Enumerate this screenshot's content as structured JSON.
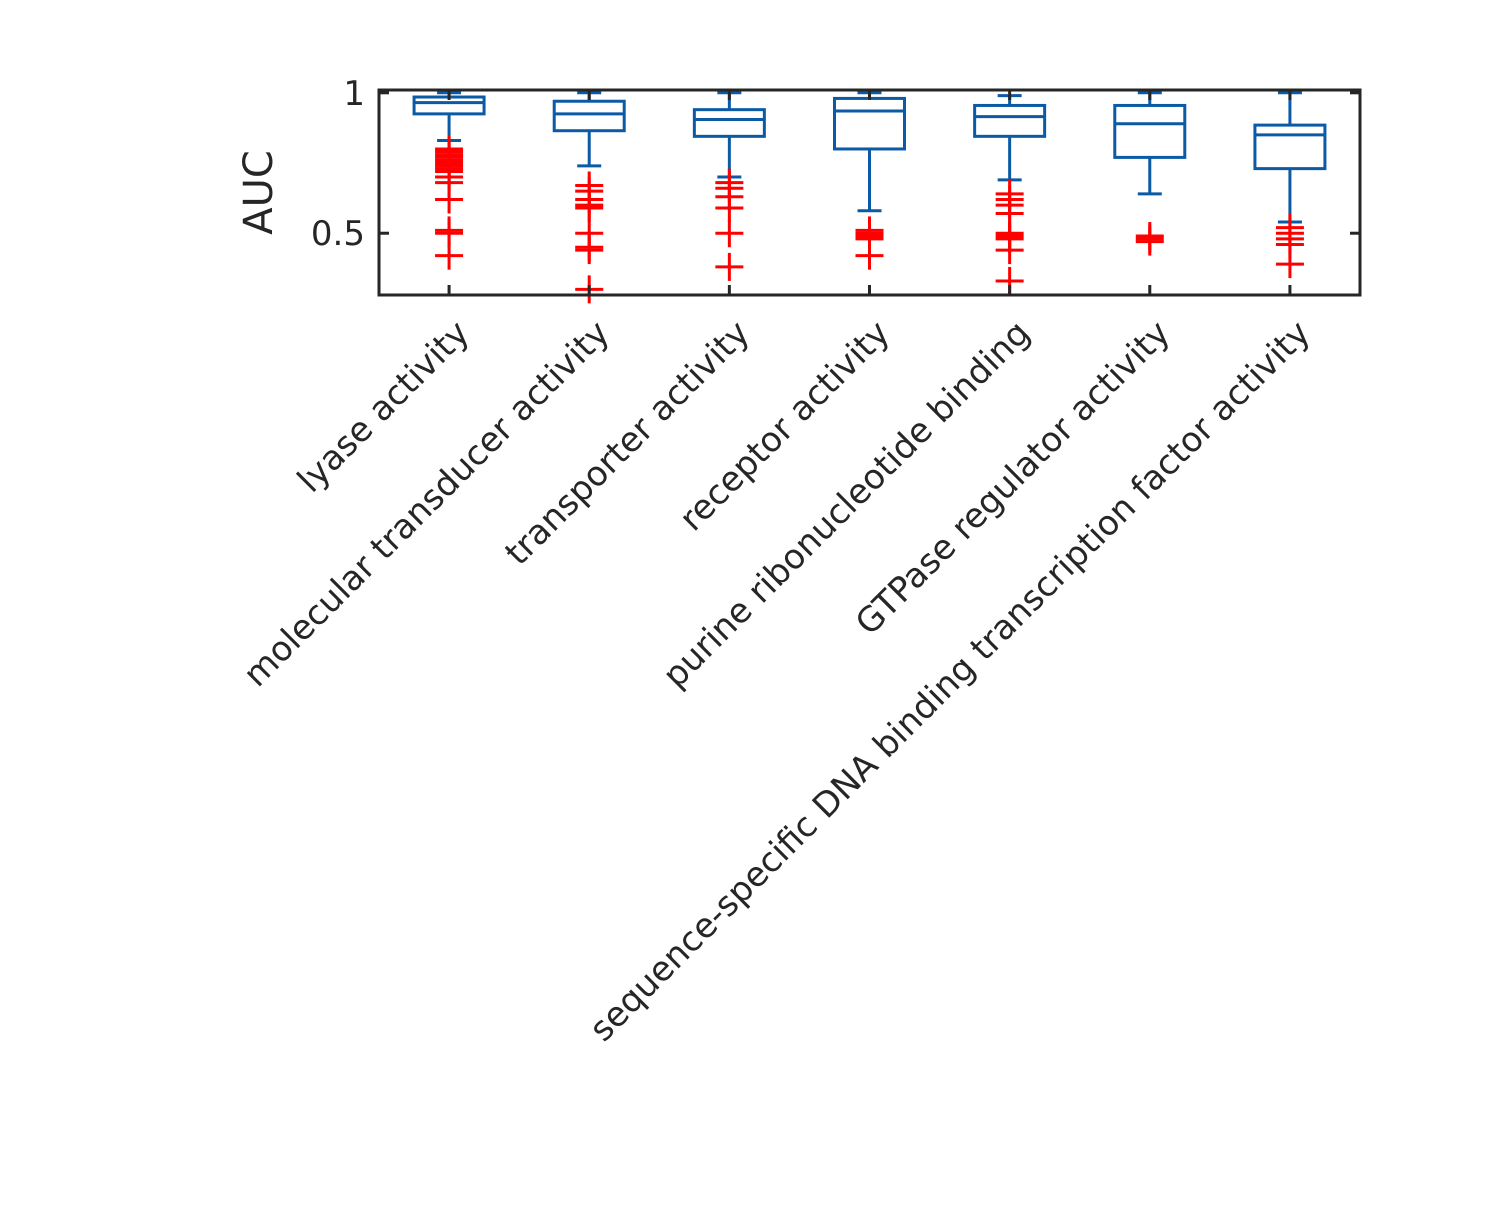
{
  "chart_data": {
    "type": "boxplot",
    "title": "",
    "xlabel": "",
    "ylabel": "AUC",
    "ylim": [
      0.28,
      1.01
    ],
    "yticks": [
      0.5,
      1
    ],
    "ytick_labels": [
      "0.5",
      "1"
    ],
    "grid": false,
    "legend": "none",
    "categories": [
      "lyase activity",
      "molecular transducer activity",
      "transporter activity",
      "receptor activity",
      "purine ribonucleotide binding",
      "GTPase regulator activity",
      "sequence-specific DNA binding transcription factor activity"
    ],
    "boxes": [
      {
        "whisker_low": 0.83,
        "q1": 0.925,
        "median": 0.965,
        "q3": 0.985,
        "whisker_high": 1.0,
        "outliers": [
          0.8,
          0.79,
          0.78,
          0.77,
          0.76,
          0.75,
          0.74,
          0.73,
          0.72,
          0.7,
          0.68,
          0.62,
          0.51,
          0.5,
          0.42
        ]
      },
      {
        "whisker_low": 0.74,
        "q1": 0.865,
        "median": 0.925,
        "q3": 0.97,
        "whisker_high": 1.0,
        "outliers": [
          0.67,
          0.65,
          0.62,
          0.6,
          0.59,
          0.5,
          0.45,
          0.44,
          0.3
        ]
      },
      {
        "whisker_low": 0.7,
        "q1": 0.845,
        "median": 0.905,
        "q3": 0.94,
        "whisker_high": 1.0,
        "outliers": [
          0.68,
          0.66,
          0.63,
          0.59,
          0.5,
          0.38
        ]
      },
      {
        "whisker_low": 0.58,
        "q1": 0.8,
        "median": 0.935,
        "q3": 0.98,
        "whisker_high": 1.0,
        "outliers": [
          0.51,
          0.5,
          0.49,
          0.48,
          0.42
        ]
      },
      {
        "whisker_low": 0.69,
        "q1": 0.845,
        "median": 0.915,
        "q3": 0.955,
        "whisker_high": 0.99,
        "outliers": [
          0.64,
          0.62,
          0.6,
          0.57,
          0.5,
          0.49,
          0.48,
          0.44,
          0.33
        ]
      },
      {
        "whisker_low": 0.64,
        "q1": 0.77,
        "median": 0.89,
        "q3": 0.955,
        "whisker_high": 1.0,
        "outliers": [
          0.49,
          0.48,
          0.47
        ]
      },
      {
        "whisker_low": 0.54,
        "q1": 0.73,
        "median": 0.85,
        "q3": 0.885,
        "whisker_high": 1.0,
        "outliers": [
          0.52,
          0.5,
          0.48,
          0.46,
          0.39
        ]
      }
    ],
    "colors": {
      "box": "#0b5aa6",
      "outlier": "#ff0000",
      "axis": "#262626"
    }
  }
}
